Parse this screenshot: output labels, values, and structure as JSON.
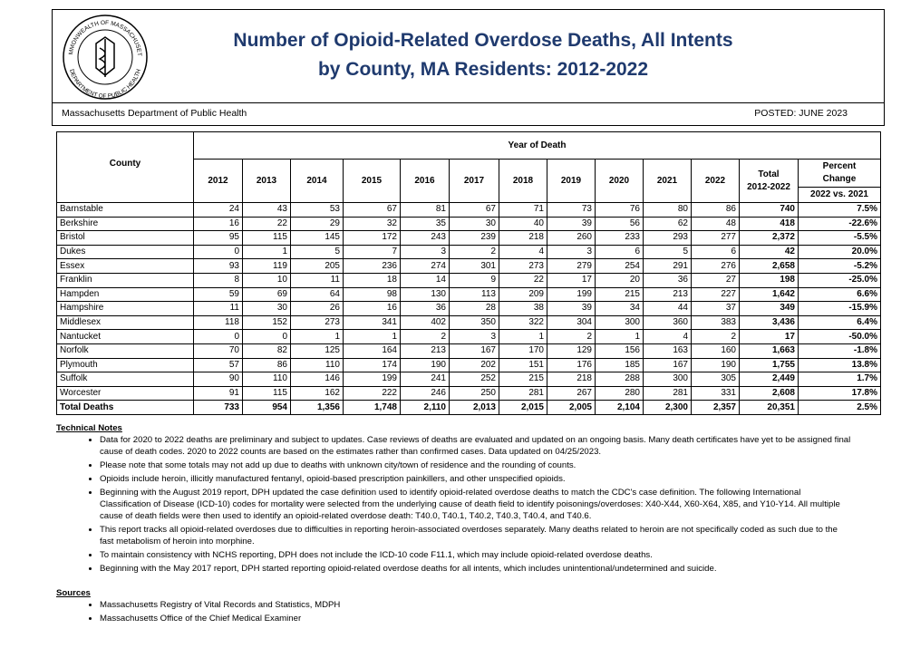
{
  "header": {
    "seal": {
      "top": "COMMONWEALTH OF MASSACHUSETTS",
      "bottom": "DEPARTMENT OF PUBLIC HEALTH"
    },
    "title_lines": [
      "Number of Opioid-Related Overdose Deaths, All Intents",
      "by County, MA Residents: 2012-2022"
    ],
    "department": "Massachusetts Department of Public Health",
    "posted": "POSTED:  JUNE 2023"
  },
  "table": {
    "county_header": "County",
    "group_header": "Year of Death",
    "years": [
      "2012",
      "2013",
      "2014",
      "2015",
      "2016",
      "2017",
      "2018",
      "2019",
      "2020",
      "2021",
      "2022"
    ],
    "total_header": [
      "Total",
      "2012-2022"
    ],
    "percent_header": [
      "Percent",
      "Change",
      "2022 vs. 2021"
    ],
    "rows": [
      [
        "Barnstable",
        "24",
        "43",
        "53",
        "67",
        "81",
        "67",
        "71",
        "73",
        "76",
        "80",
        "86",
        "740",
        "7.5%"
      ],
      [
        "Berkshire",
        "16",
        "22",
        "29",
        "32",
        "35",
        "30",
        "40",
        "39",
        "56",
        "62",
        "48",
        "418",
        "-22.6%"
      ],
      [
        "Bristol",
        "95",
        "115",
        "145",
        "172",
        "243",
        "239",
        "218",
        "260",
        "233",
        "293",
        "277",
        "2,372",
        "-5.5%"
      ],
      [
        "Dukes",
        "0",
        "1",
        "5",
        "7",
        "3",
        "2",
        "4",
        "3",
        "6",
        "5",
        "6",
        "42",
        "20.0%"
      ],
      [
        "Essex",
        "93",
        "119",
        "205",
        "236",
        "274",
        "301",
        "273",
        "279",
        "254",
        "291",
        "276",
        "2,658",
        "-5.2%"
      ],
      [
        "Franklin",
        "8",
        "10",
        "11",
        "18",
        "14",
        "9",
        "22",
        "17",
        "20",
        "36",
        "27",
        "198",
        "-25.0%"
      ],
      [
        "Hampden",
        "59",
        "69",
        "64",
        "98",
        "130",
        "113",
        "209",
        "199",
        "215",
        "213",
        "227",
        "1,642",
        "6.6%"
      ],
      [
        "Hampshire",
        "11",
        "30",
        "26",
        "16",
        "36",
        "28",
        "38",
        "39",
        "34",
        "44",
        "37",
        "349",
        "-15.9%"
      ],
      [
        "Middlesex",
        "118",
        "152",
        "273",
        "341",
        "402",
        "350",
        "322",
        "304",
        "300",
        "360",
        "383",
        "3,436",
        "6.4%"
      ],
      [
        "Nantucket",
        "0",
        "0",
        "1",
        "1",
        "2",
        "3",
        "1",
        "2",
        "1",
        "4",
        "2",
        "17",
        "-50.0%"
      ],
      [
        "Norfolk",
        "70",
        "82",
        "125",
        "164",
        "213",
        "167",
        "170",
        "129",
        "156",
        "163",
        "160",
        "1,663",
        "-1.8%"
      ],
      [
        "Plymouth",
        "57",
        "86",
        "110",
        "174",
        "190",
        "202",
        "151",
        "176",
        "185",
        "167",
        "190",
        "1,755",
        "13.8%"
      ],
      [
        "Suffolk",
        "90",
        "110",
        "146",
        "199",
        "241",
        "252",
        "215",
        "218",
        "288",
        "300",
        "305",
        "2,449",
        "1.7%"
      ],
      [
        "Worcester",
        "91",
        "115",
        "162",
        "222",
        "246",
        "250",
        "281",
        "267",
        "280",
        "281",
        "331",
        "2,608",
        "17.8%"
      ]
    ],
    "total_row": [
      "Total Deaths",
      "733",
      "954",
      "1,356",
      "1,748",
      "2,110",
      "2,013",
      "2,015",
      "2,005",
      "2,104",
      "2,300",
      "2,357",
      "20,351",
      "2.5%"
    ]
  },
  "notes": {
    "heading": "Technical Notes",
    "items": [
      "Data for 2020 to 2022 deaths are preliminary and subject to updates. Case reviews of deaths are evaluated and updated on an ongoing basis. Many death certificates have yet to be assigned final cause of death codes. 2020 to 2022 counts are based on the estimates rather than confirmed cases. Data updated on 04/25/2023.",
      "Please note that some totals may not add up due to deaths with unknown city/town of residence and the rounding of counts.",
      "Opioids include heroin, illicitly manufactured fentanyl, opioid-based prescription painkillers, and other unspecified opioids.",
      "Beginning with the August 2019 report, DPH updated the case definition used to identify opioid-related overdose deaths to match the CDC's case definition. The following International Classification of Disease (ICD-10) codes for mortality were selected from the underlying cause of death field to identify poisonings/overdoses: X40-X44, X60-X64, X85, and Y10-Y14. All multiple cause of death fields were then used to identify an opioid-related overdose death: T40.0, T40.1, T40.2, T40.3, T40.4, and T40.6.",
      "This report tracks all opioid-related overdoses due to difficulties in reporting heroin-associated overdoses separately. Many deaths related to heroin are not specifically coded as such due to the fast metabolism of heroin into morphine.",
      "To maintain consistency with NCHS reporting, DPH does not include the ICD-10 code F11.1, which may include opioid-related overdose deaths.",
      "Beginning with the May 2017 report, DPH started reporting opioid-related overdose deaths for all intents, which includes unintentional/undetermined and suicide."
    ]
  },
  "sources": {
    "heading": "Sources",
    "items": [
      "Massachusetts Registry of Vital Records and Statistics, MDPH",
      "Massachusetts Office of the Chief Medical Examiner"
    ]
  }
}
